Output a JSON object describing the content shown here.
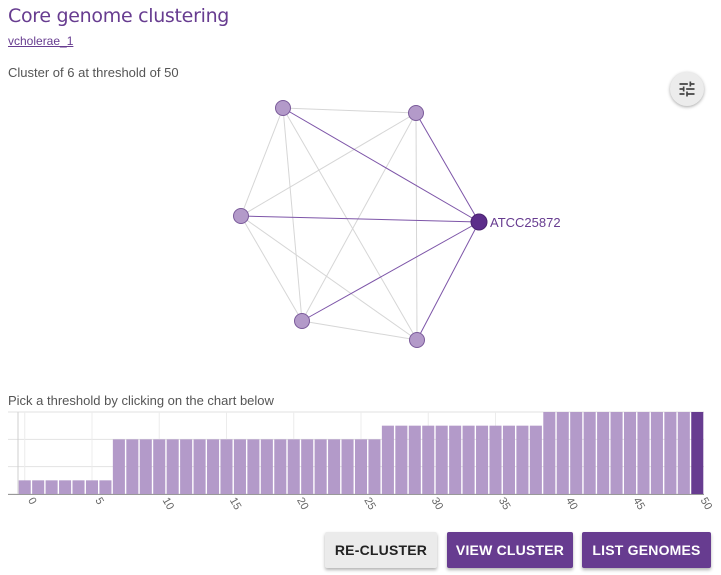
{
  "header": {
    "title": "Core genome clustering",
    "collection_link": "vcholerae_1"
  },
  "cluster": {
    "summary": "Cluster of 6 at threshold of 50",
    "selected_genome": "ATCC25872",
    "colors": {
      "node": "#b39ac9",
      "node_stroke": "#7a5a9a",
      "selected": "#5c2d8a",
      "edge_active": "#7d55a8",
      "edge_inactive": "#d6d6d6"
    }
  },
  "toolbar": {
    "settings_icon": "tune-sliders-icon"
  },
  "chart": {
    "instruction": "Pick a threshold by clicking on the chart below"
  },
  "chart_data": {
    "type": "bar",
    "x": [
      0,
      1,
      2,
      3,
      4,
      5,
      6,
      7,
      8,
      9,
      10,
      11,
      12,
      13,
      14,
      15,
      16,
      17,
      18,
      19,
      20,
      21,
      22,
      23,
      24,
      25,
      26,
      27,
      28,
      29,
      30,
      31,
      32,
      33,
      34,
      35,
      36,
      37,
      38,
      39,
      40,
      41,
      42,
      43,
      44,
      45,
      46,
      47,
      48,
      49,
      50
    ],
    "values": [
      1,
      1,
      1,
      1,
      1,
      1,
      1,
      4,
      4,
      4,
      4,
      4,
      4,
      4,
      4,
      4,
      4,
      4,
      4,
      4,
      4,
      4,
      4,
      4,
      4,
      4,
      4,
      5,
      5,
      5,
      5,
      5,
      5,
      5,
      5,
      5,
      5,
      5,
      5,
      6,
      6,
      6,
      6,
      6,
      6,
      6,
      6,
      6,
      6,
      6,
      6
    ],
    "tick_labels": [
      "0",
      "5",
      "10",
      "15",
      "20",
      "25",
      "30",
      "35",
      "40",
      "45",
      "50"
    ],
    "selected_threshold": 50,
    "ylim": [
      0,
      6
    ],
    "colors": {
      "bar": "#b39ac9",
      "selected": "#673c90"
    }
  },
  "actions": {
    "recluster_label": "RE-CLUSTER",
    "view_cluster_label": "VIEW CLUSTER",
    "list_genomes_label": "LIST GENOMES"
  }
}
